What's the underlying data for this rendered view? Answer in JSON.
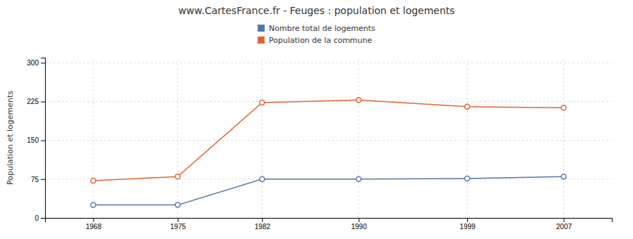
{
  "chart_data": {
    "type": "line",
    "title": "www.CartesFrance.fr - Feuges : population et logements",
    "ylabel": "Population et logements",
    "x": [
      1968,
      1975,
      1982,
      1990,
      1999,
      2007
    ],
    "series": [
      {
        "name": "Nombre total de logements",
        "color": "#5577aa",
        "marker": "circle",
        "values": [
          25,
          25,
          75,
          75,
          76,
          80
        ]
      },
      {
        "name": "Population de la commune",
        "color": "#dd6633",
        "marker": "circle",
        "values": [
          72,
          80,
          223,
          228,
          215,
          213
        ]
      }
    ],
    "xlim": [
      1964,
      2011
    ],
    "xticks": [
      1968,
      1975,
      1982,
      1990,
      1999,
      2007
    ],
    "ylim": [
      0,
      310
    ],
    "yticks": [
      0,
      75,
      150,
      225,
      300
    ],
    "grid": true,
    "legend": "top"
  }
}
